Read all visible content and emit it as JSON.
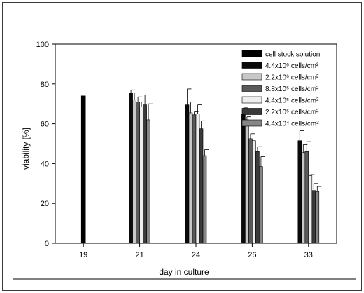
{
  "chart_data": {
    "type": "bar",
    "xlabel": "day in culture",
    "ylabel": "viability [%]",
    "ylim": [
      0,
      100
    ],
    "yticks": [
      0,
      20,
      40,
      60,
      80,
      100
    ],
    "grid": false,
    "legend_position": "top-right",
    "categories": [
      "19",
      "21",
      "24",
      "26",
      "33"
    ],
    "series": [
      {
        "name": "cell stock solution",
        "color": "#000000",
        "values": [
          74,
          null,
          null,
          null,
          null
        ],
        "errors": [
          0,
          0,
          0,
          0,
          0
        ]
      },
      {
        "name": "4.4x10⁶ cells/cm²",
        "color": "#0a0a0a",
        "values": [
          null,
          75.5,
          69.5,
          65,
          51.5
        ],
        "errors": [
          0,
          1.5,
          8,
          3,
          5
        ]
      },
      {
        "name": "2.2x10⁶ cells/cm²",
        "color": "#c8c8c8",
        "values": [
          null,
          72,
          65.5,
          62,
          45.5
        ],
        "errors": [
          0,
          3.5,
          5.5,
          1.5,
          4
        ]
      },
      {
        "name": "8.8x10⁵ cells/cm²",
        "color": "#5a5a5a",
        "values": [
          null,
          71,
          64.5,
          52.5,
          46
        ],
        "errors": [
          0,
          2.5,
          1.5,
          2.5,
          5
        ]
      },
      {
        "name": "4.4x10⁵ cells/cm²",
        "color": "#eeeeee",
        "values": [
          null,
          68.5,
          65,
          51.5,
          34
        ],
        "errors": [
          0,
          2.5,
          4.5,
          0,
          0.5
        ]
      },
      {
        "name": "2.2x10⁵ cells/cm²",
        "color": "#3a3a3a",
        "values": [
          null,
          69.5,
          57.5,
          46,
          26.5
        ],
        "errors": [
          0,
          5,
          4,
          2.5,
          3.5
        ]
      },
      {
        "name": "4.4x10⁴ cells/cm²",
        "color": "#868686",
        "values": [
          null,
          62,
          44,
          38.5,
          26
        ],
        "errors": [
          0,
          8,
          3,
          5,
          2.5
        ]
      }
    ]
  }
}
